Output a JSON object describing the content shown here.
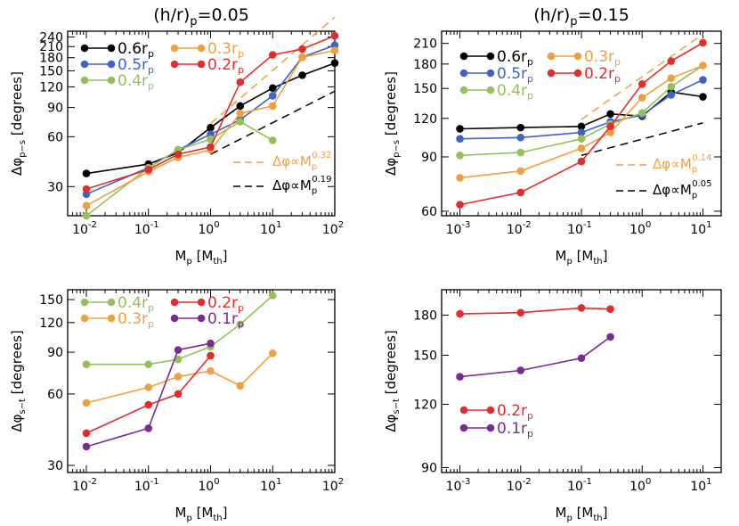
{
  "figure": {
    "colors": {
      "c06": "#000000",
      "c05": "#3f63c6",
      "c04": "#93c05a",
      "c03": "#eea041",
      "c02": "#e22d2d",
      "c01": "#7a2b92"
    }
  },
  "chart_data": [
    {
      "type": "line",
      "id": "p1",
      "title_main": "(h/r)",
      "title_sub": "p",
      "title_value": "=0.05",
      "xscale": "log",
      "yscale": "log",
      "xlim": [
        0.005,
        100
      ],
      "ylim": [
        20,
        260
      ],
      "xticks": [
        {
          "v": 0.01,
          "b": "10",
          "e": "-2"
        },
        {
          "v": 0.1,
          "b": "10",
          "e": "-1"
        },
        {
          "v": 1,
          "b": "10",
          "e": "0"
        },
        {
          "v": 10,
          "b": "10",
          "e": "1"
        },
        {
          "v": 100,
          "b": "10",
          "e": "2"
        }
      ],
      "yticks": [
        30,
        60,
        90,
        120,
        150,
        180,
        210,
        240
      ],
      "xlabel": {
        "main": "M",
        "sub": "p",
        "unit": " [M",
        "unit_sub": "th",
        "close": "]"
      },
      "ylabel": {
        "main": "Δφ",
        "sub": "p−s",
        "unit": " [degrees]"
      },
      "series": [
        {
          "name": "0.6r",
          "name_sub": "p",
          "color": "#000000",
          "x": [
            0.01,
            0.1,
            0.3,
            1,
            3,
            10,
            30,
            100
          ],
          "y": [
            36,
            41,
            48,
            68,
            92,
            118,
            141,
            167
          ]
        },
        {
          "name": "0.5r",
          "name_sub": "p",
          "color": "#3f63c6",
          "x": [
            0.01,
            0.1,
            0.3,
            1,
            3,
            10,
            30,
            100
          ],
          "y": [
            27,
            39,
            50,
            62,
            76,
            106,
            181,
            214
          ]
        },
        {
          "name": "0.4r",
          "name_sub": "p",
          "color": "#93c05a",
          "x": [
            0.01,
            0.1,
            0.3,
            1,
            3,
            10
          ],
          "y": [
            20,
            39,
            50,
            58,
            74,
            57
          ]
        },
        {
          "name": "0.3r",
          "name_sub": "p",
          "color": "#eea041",
          "x": [
            0.01,
            0.1,
            0.3,
            1,
            3,
            10,
            30,
            100
          ],
          "y": [
            23,
            37,
            45,
            50,
            83,
            92,
            181,
            199
          ]
        },
        {
          "name": "0.2r",
          "name_sub": "p",
          "color": "#e22d2d",
          "x": [
            0.01,
            0.1,
            0.3,
            1,
            3,
            10,
            30,
            100
          ],
          "y": [
            29,
            38,
            47,
            52,
            128,
            187,
            203,
            244
          ]
        }
      ],
      "fits": [
        {
          "label": "Δφ∝M",
          "sub": "p",
          "exp": "0.32",
          "color": "#eea041",
          "x": [
            1,
            100
          ],
          "y": [
            72,
            316
          ]
        },
        {
          "label": "Δφ∝M",
          "sub": "p",
          "exp": "0.19",
          "color": "#000000",
          "x": [
            1,
            100
          ],
          "y": [
            47,
            113
          ]
        }
      ]
    },
    {
      "type": "line",
      "id": "p2",
      "title_main": "(h/r)",
      "title_sub": "p",
      "title_value": "=0.15",
      "xscale": "log",
      "yscale": "log",
      "xlim": [
        0.0005,
        20
      ],
      "ylim": [
        58,
        230
      ],
      "xticks": [
        {
          "v": 0.001,
          "b": "10",
          "e": "-3"
        },
        {
          "v": 0.01,
          "b": "10",
          "e": "-2"
        },
        {
          "v": 0.1,
          "b": "10",
          "e": "-1"
        },
        {
          "v": 1,
          "b": "10",
          "e": "0"
        },
        {
          "v": 10,
          "b": "10",
          "e": "1"
        }
      ],
      "yticks": [
        60,
        90,
        120,
        150,
        180,
        210
      ],
      "xlabel": {
        "main": "M",
        "sub": "p",
        "unit": " [M",
        "unit_sub": "th",
        "close": "]"
      },
      "ylabel": {
        "main": "Δφ",
        "sub": "p−s",
        "unit": " [degrees]"
      },
      "series": [
        {
          "name": "0.6r",
          "name_sub": "p",
          "color": "#000000",
          "x": [
            0.001,
            0.01,
            0.1,
            0.3,
            1,
            3,
            10
          ],
          "y": [
            111,
            112,
            113,
            124,
            122,
            146,
            141
          ]
        },
        {
          "name": "0.5r",
          "name_sub": "p",
          "color": "#3f63c6",
          "x": [
            0.001,
            0.01,
            0.1,
            0.3,
            1,
            3,
            10
          ],
          "y": [
            103,
            104,
            108,
            117,
            123,
            143,
            160
          ]
        },
        {
          "name": "0.4r",
          "name_sub": "p",
          "color": "#93c05a",
          "x": [
            0.001,
            0.01,
            0.1,
            0.3,
            1,
            3,
            10
          ],
          "y": [
            91,
            93,
            103,
            115,
            125,
            152,
            178
          ]
        },
        {
          "name": "0.3r",
          "name_sub": "p",
          "color": "#eea041",
          "x": [
            0.001,
            0.01,
            0.1,
            0.3,
            1,
            3,
            10
          ],
          "y": [
            77,
            81,
            96,
            108,
            140,
            162,
            178
          ]
        },
        {
          "name": "0.2r",
          "name_sub": "p",
          "color": "#e22d2d",
          "x": [
            0.001,
            0.01,
            0.1,
            0.3,
            1,
            3,
            10
          ],
          "y": [
            63,
            69,
            87,
            113,
            155,
            184,
            211
          ]
        }
      ],
      "fits": [
        {
          "label": "Δφ∝M",
          "sub": "p",
          "exp": "0.14",
          "color": "#eea041",
          "x": [
            0.1,
            10
          ],
          "y": [
            119,
            225
          ]
        },
        {
          "label": "Δφ∝M",
          "sub": "p",
          "exp": "0.05",
          "color": "#000000",
          "x": [
            0.1,
            10
          ],
          "y": [
            91,
            116
          ]
        }
      ]
    },
    {
      "type": "line",
      "id": "p3",
      "xscale": "log",
      "yscale": "log",
      "xlim": [
        0.005,
        100
      ],
      "ylim": [
        28,
        165
      ],
      "xticks": [
        {
          "v": 0.01,
          "b": "10",
          "e": "-2"
        },
        {
          "v": 0.1,
          "b": "10",
          "e": "-1"
        },
        {
          "v": 1,
          "b": "10",
          "e": "0"
        },
        {
          "v": 10,
          "b": "10",
          "e": "1"
        },
        {
          "v": 100,
          "b": "10",
          "e": "2"
        }
      ],
      "yticks": [
        30,
        60,
        90,
        120,
        150
      ],
      "xlabel": {
        "main": "M",
        "sub": "p",
        "unit": " [M",
        "unit_sub": "th",
        "close": "]"
      },
      "ylabel": {
        "main": "Δφ",
        "sub": "s−t",
        "unit": " [degrees]"
      },
      "series": [
        {
          "name": "0.4r",
          "name_sub": "p",
          "color": "#93c05a",
          "x": [
            0.01,
            0.1,
            0.3,
            1,
            3,
            10
          ],
          "y": [
            80,
            80,
            84,
            95,
            118,
            156
          ]
        },
        {
          "name": "0.3r",
          "name_sub": "p",
          "color": "#eea041",
          "x": [
            0.01,
            0.1,
            0.3,
            1,
            3,
            10
          ],
          "y": [
            55,
            64,
            71,
            75,
            65,
            89
          ]
        },
        {
          "name": "0.2r",
          "name_sub": "p",
          "color": "#e22d2d",
          "x": [
            0.01,
            0.1,
            0.3,
            1
          ],
          "y": [
            41,
            54,
            60,
            87
          ]
        },
        {
          "name": "0.1r",
          "name_sub": "p",
          "color": "#7a2b92",
          "x": [
            0.01,
            0.1,
            0.3,
            1
          ],
          "y": [
            36,
            43,
            92,
            98
          ]
        }
      ],
      "fits": []
    },
    {
      "type": "line",
      "id": "p4",
      "xscale": "log",
      "yscale": "log",
      "xlim": [
        0.0005,
        20
      ],
      "ylim": [
        88,
        202
      ],
      "xticks": [
        {
          "v": 0.001,
          "b": "10",
          "e": "-3"
        },
        {
          "v": 0.01,
          "b": "10",
          "e": "-2"
        },
        {
          "v": 0.1,
          "b": "10",
          "e": "-1"
        },
        {
          "v": 1,
          "b": "10",
          "e": "0"
        },
        {
          "v": 10,
          "b": "10",
          "e": "1"
        }
      ],
      "yticks": [
        90,
        120,
        150,
        180
      ],
      "xlabel": {
        "main": "M",
        "sub": "p",
        "unit": " [M",
        "unit_sub": "th",
        "close": "]"
      },
      "ylabel": {
        "main": "Δφ",
        "sub": "s−t",
        "unit": " [degrees]"
      },
      "series": [
        {
          "name": "0.2r",
          "name_sub": "p",
          "color": "#e22d2d",
          "x": [
            0.001,
            0.01,
            0.1,
            0.3
          ],
          "y": [
            181,
            182,
            186,
            185
          ]
        },
        {
          "name": "0.1r",
          "name_sub": "p",
          "color": "#7a2b92",
          "x": [
            0.001,
            0.01,
            0.1,
            0.3
          ],
          "y": [
            136,
            140,
            148,
            163
          ]
        }
      ],
      "fits": []
    }
  ]
}
